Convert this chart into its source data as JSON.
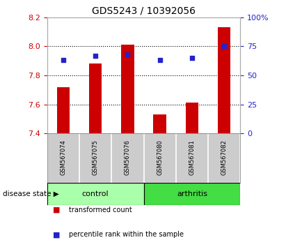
{
  "title": "GDS5243 / 10392056",
  "categories": [
    "GSM567074",
    "GSM567075",
    "GSM567076",
    "GSM567080",
    "GSM567081",
    "GSM567082"
  ],
  "bar_values": [
    7.72,
    7.88,
    8.01,
    7.53,
    7.61,
    8.13
  ],
  "scatter_values": [
    63,
    67,
    68,
    63,
    65,
    75
  ],
  "ylim_left": [
    7.4,
    8.2
  ],
  "ylim_right": [
    0,
    100
  ],
  "yticks_left": [
    7.4,
    7.6,
    7.8,
    8.0,
    8.2
  ],
  "yticks_right": [
    0,
    25,
    50,
    75,
    100
  ],
  "ytick_labels_right": [
    "0",
    "25",
    "50",
    "75",
    "100%"
  ],
  "bar_color": "#cc0000",
  "scatter_color": "#2222cc",
  "bar_bottom": 7.4,
  "groups": [
    {
      "label": "control",
      "indices": [
        0,
        1,
        2
      ],
      "color": "#aaffaa"
    },
    {
      "label": "arthritis",
      "indices": [
        3,
        4,
        5
      ],
      "color": "#44dd44"
    }
  ],
  "disease_state_label": "disease state",
  "legend_items": [
    {
      "label": "transformed count",
      "color": "#cc0000"
    },
    {
      "label": "percentile rank within the sample",
      "color": "#2222cc"
    }
  ],
  "background_color": "#ffffff",
  "tick_label_area_color": "#cccccc",
  "bar_width": 0.4
}
